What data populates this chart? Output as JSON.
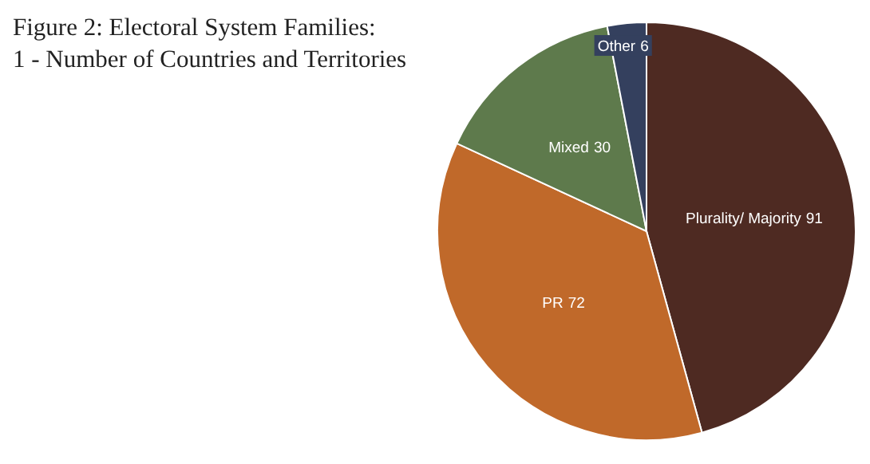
{
  "chart_data": {
    "type": "pie",
    "title": "Figure 2: Electoral System Families:",
    "subtitle": "1 - Number of Countries and Territories",
    "categories": [
      "Plurality/ Majority",
      "PR",
      "Mixed",
      "Other"
    ],
    "values": [
      91,
      72,
      30,
      6
    ],
    "colors": [
      "#4e2a22",
      "#c0692a",
      "#5e7a4c",
      "#34405e"
    ],
    "data_labels": true
  }
}
